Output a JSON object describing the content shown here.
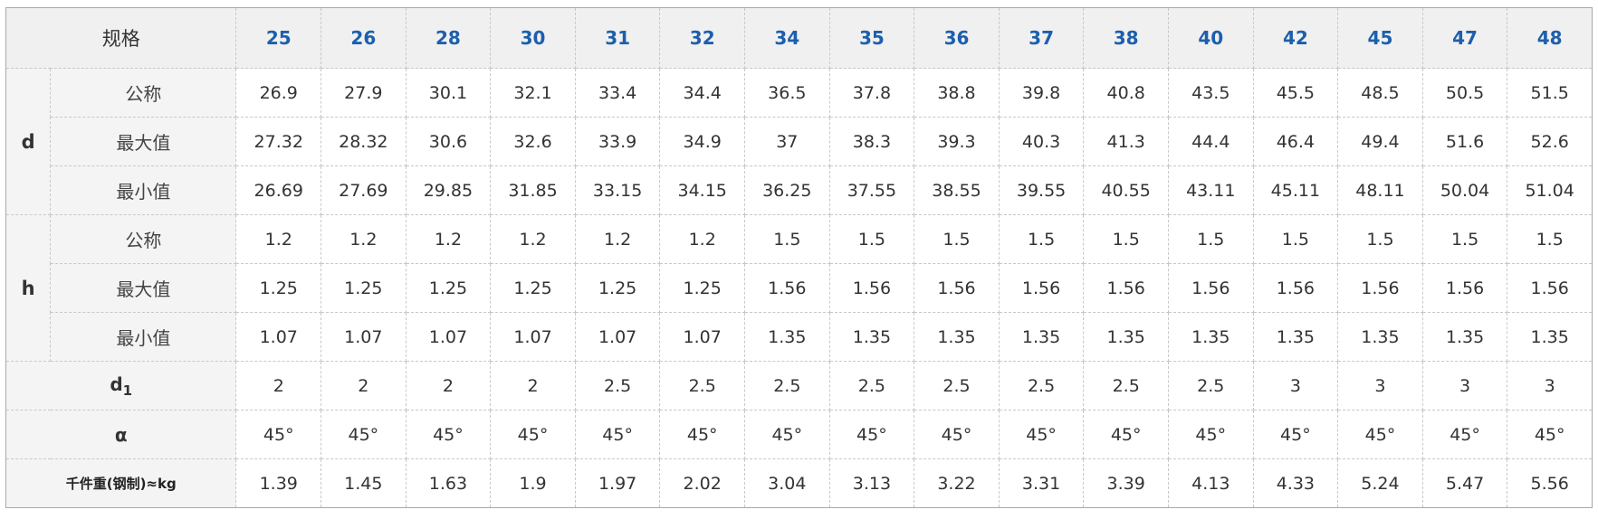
{
  "header": {
    "spec_label": "规格",
    "sizes": [
      "25",
      "26",
      "28",
      "30",
      "31",
      "32",
      "34",
      "35",
      "36",
      "37",
      "38",
      "40",
      "42",
      "45",
      "47",
      "48"
    ]
  },
  "d": {
    "label": "d",
    "nominal_label": "公称",
    "max_label": "最大值",
    "min_label": "最小值",
    "nominal": [
      "26.9",
      "27.9",
      "30.1",
      "32.1",
      "33.4",
      "34.4",
      "36.5",
      "37.8",
      "38.8",
      "39.8",
      "40.8",
      "43.5",
      "45.5",
      "48.5",
      "50.5",
      "51.5"
    ],
    "max": [
      "27.32",
      "28.32",
      "30.6",
      "32.6",
      "33.9",
      "34.9",
      "37",
      "38.3",
      "39.3",
      "40.3",
      "41.3",
      "44.4",
      "46.4",
      "49.4",
      "51.6",
      "52.6"
    ],
    "min": [
      "26.69",
      "27.69",
      "29.85",
      "31.85",
      "33.15",
      "34.15",
      "36.25",
      "37.55",
      "38.55",
      "39.55",
      "40.55",
      "43.11",
      "45.11",
      "48.11",
      "50.04",
      "51.04"
    ]
  },
  "h": {
    "label": "h",
    "nominal_label": "公称",
    "max_label": "最大值",
    "min_label": "最小值",
    "nominal": [
      "1.2",
      "1.2",
      "1.2",
      "1.2",
      "1.2",
      "1.2",
      "1.5",
      "1.5",
      "1.5",
      "1.5",
      "1.5",
      "1.5",
      "1.5",
      "1.5",
      "1.5",
      "1.5"
    ],
    "max": [
      "1.25",
      "1.25",
      "1.25",
      "1.25",
      "1.25",
      "1.25",
      "1.56",
      "1.56",
      "1.56",
      "1.56",
      "1.56",
      "1.56",
      "1.56",
      "1.56",
      "1.56",
      "1.56"
    ],
    "min": [
      "1.07",
      "1.07",
      "1.07",
      "1.07",
      "1.07",
      "1.07",
      "1.35",
      "1.35",
      "1.35",
      "1.35",
      "1.35",
      "1.35",
      "1.35",
      "1.35",
      "1.35",
      "1.35"
    ]
  },
  "d1": {
    "label_base": "d",
    "label_sub": "1",
    "values": [
      "2",
      "2",
      "2",
      "2",
      "2.5",
      "2.5",
      "2.5",
      "2.5",
      "2.5",
      "2.5",
      "2.5",
      "2.5",
      "3",
      "3",
      "3",
      "3"
    ]
  },
  "alpha": {
    "label": "α",
    "values": [
      "45°",
      "45°",
      "45°",
      "45°",
      "45°",
      "45°",
      "45°",
      "45°",
      "45°",
      "45°",
      "45°",
      "45°",
      "45°",
      "45°",
      "45°",
      "45°"
    ]
  },
  "weight": {
    "label": "千件重(钢制)≈kg",
    "values": [
      "1.39",
      "1.45",
      "1.63",
      "1.9",
      "1.97",
      "2.02",
      "3.04",
      "3.13",
      "3.22",
      "3.31",
      "3.39",
      "4.13",
      "4.33",
      "5.24",
      "5.47",
      "5.56"
    ]
  }
}
